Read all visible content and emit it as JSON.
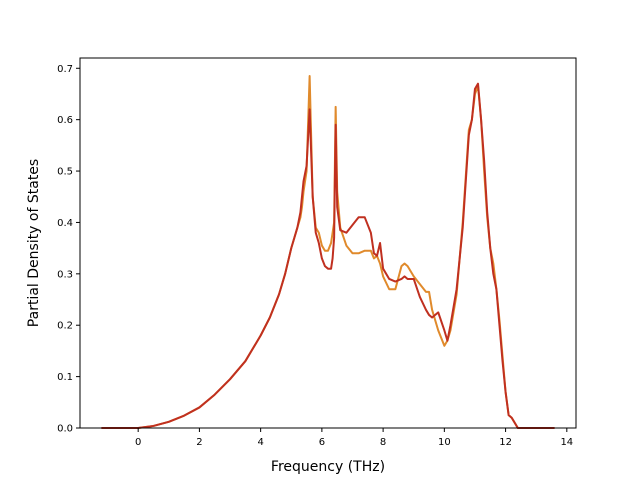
{
  "chart_data": {
    "type": "line",
    "xlabel": "Frequency (THz)",
    "ylabel": "Partial Density of States",
    "xlim": [
      -1.9,
      14.3
    ],
    "ylim": [
      0.0,
      0.72
    ],
    "xticks": [
      0,
      2,
      4,
      6,
      8,
      10,
      12,
      14
    ],
    "yticks": [
      0.0,
      0.1,
      0.2,
      0.3,
      0.4,
      0.5,
      0.6,
      0.7
    ],
    "xtick_labels": [
      "0",
      "2",
      "4",
      "6",
      "8",
      "10",
      "12",
      "14"
    ],
    "ytick_labels": [
      "0.0",
      "0.1",
      "0.2",
      "0.3",
      "0.4",
      "0.5",
      "0.6",
      "0.7"
    ],
    "grid": false,
    "legend": "none",
    "series": [
      {
        "color": "#e08a2c",
        "x": [
          -1.2,
          -0.5,
          0.0,
          0.5,
          1.0,
          1.5,
          2.0,
          2.5,
          3.0,
          3.5,
          4.0,
          4.3,
          4.6,
          4.8,
          5.0,
          5.1,
          5.2,
          5.3,
          5.35,
          5.4,
          5.5,
          5.6,
          5.7,
          5.8,
          5.9,
          6.0,
          6.1,
          6.2,
          6.3,
          6.35,
          6.4,
          6.45,
          6.5,
          6.6,
          6.8,
          7.0,
          7.2,
          7.4,
          7.6,
          7.7,
          7.8,
          7.9,
          8.0,
          8.2,
          8.4,
          8.6,
          8.7,
          8.8,
          9.0,
          9.2,
          9.4,
          9.5,
          9.6,
          9.8,
          10.0,
          10.1,
          10.2,
          10.4,
          10.6,
          10.8,
          10.9,
          11.0,
          11.1,
          11.2,
          11.3,
          11.4,
          11.5,
          11.6,
          11.7,
          11.8,
          11.9,
          12.0,
          12.1,
          12.2,
          12.3,
          12.4,
          13.0,
          13.6
        ],
        "y": [
          0.0,
          0.0,
          0.0,
          0.004,
          0.012,
          0.024,
          0.04,
          0.065,
          0.095,
          0.13,
          0.18,
          0.215,
          0.26,
          0.3,
          0.35,
          0.37,
          0.39,
          0.41,
          0.43,
          0.46,
          0.5,
          0.685,
          0.45,
          0.39,
          0.38,
          0.355,
          0.345,
          0.345,
          0.36,
          0.38,
          0.4,
          0.625,
          0.46,
          0.39,
          0.355,
          0.34,
          0.34,
          0.345,
          0.345,
          0.33,
          0.335,
          0.32,
          0.295,
          0.27,
          0.27,
          0.315,
          0.32,
          0.315,
          0.295,
          0.28,
          0.265,
          0.265,
          0.23,
          0.19,
          0.16,
          0.17,
          0.19,
          0.26,
          0.4,
          0.58,
          0.6,
          0.65,
          0.665,
          0.6,
          0.5,
          0.41,
          0.35,
          0.32,
          0.27,
          0.21,
          0.14,
          0.07,
          0.025,
          0.02,
          0.01,
          0.0,
          0.0,
          0.0
        ]
      },
      {
        "color": "#c03020",
        "x": [
          -1.2,
          -0.5,
          0.0,
          0.5,
          1.0,
          1.5,
          2.0,
          2.5,
          3.0,
          3.5,
          4.0,
          4.3,
          4.6,
          4.8,
          5.0,
          5.1,
          5.2,
          5.3,
          5.35,
          5.4,
          5.5,
          5.6,
          5.7,
          5.8,
          5.9,
          6.0,
          6.1,
          6.2,
          6.3,
          6.35,
          6.4,
          6.45,
          6.5,
          6.6,
          6.8,
          7.0,
          7.2,
          7.4,
          7.6,
          7.7,
          7.8,
          7.9,
          8.0,
          8.2,
          8.4,
          8.6,
          8.7,
          8.8,
          9.0,
          9.2,
          9.4,
          9.5,
          9.6,
          9.8,
          10.0,
          10.1,
          10.2,
          10.4,
          10.6,
          10.8,
          10.9,
          11.0,
          11.1,
          11.2,
          11.3,
          11.4,
          11.5,
          11.6,
          11.7,
          11.8,
          11.9,
          12.0,
          12.1,
          12.2,
          12.3,
          12.4,
          13.0,
          13.6
        ],
        "y": [
          0.0,
          0.0,
          0.0,
          0.004,
          0.012,
          0.024,
          0.04,
          0.065,
          0.095,
          0.13,
          0.18,
          0.215,
          0.26,
          0.3,
          0.35,
          0.37,
          0.39,
          0.42,
          0.45,
          0.48,
          0.51,
          0.62,
          0.45,
          0.38,
          0.36,
          0.33,
          0.315,
          0.31,
          0.31,
          0.33,
          0.37,
          0.59,
          0.43,
          0.385,
          0.38,
          0.395,
          0.41,
          0.41,
          0.38,
          0.34,
          0.335,
          0.36,
          0.31,
          0.29,
          0.285,
          0.29,
          0.295,
          0.29,
          0.29,
          0.255,
          0.23,
          0.22,
          0.215,
          0.225,
          0.19,
          0.17,
          0.2,
          0.27,
          0.39,
          0.57,
          0.6,
          0.66,
          0.67,
          0.6,
          0.52,
          0.42,
          0.35,
          0.3,
          0.27,
          0.2,
          0.13,
          0.07,
          0.025,
          0.02,
          0.01,
          0.0,
          0.0,
          0.0
        ]
      }
    ]
  }
}
